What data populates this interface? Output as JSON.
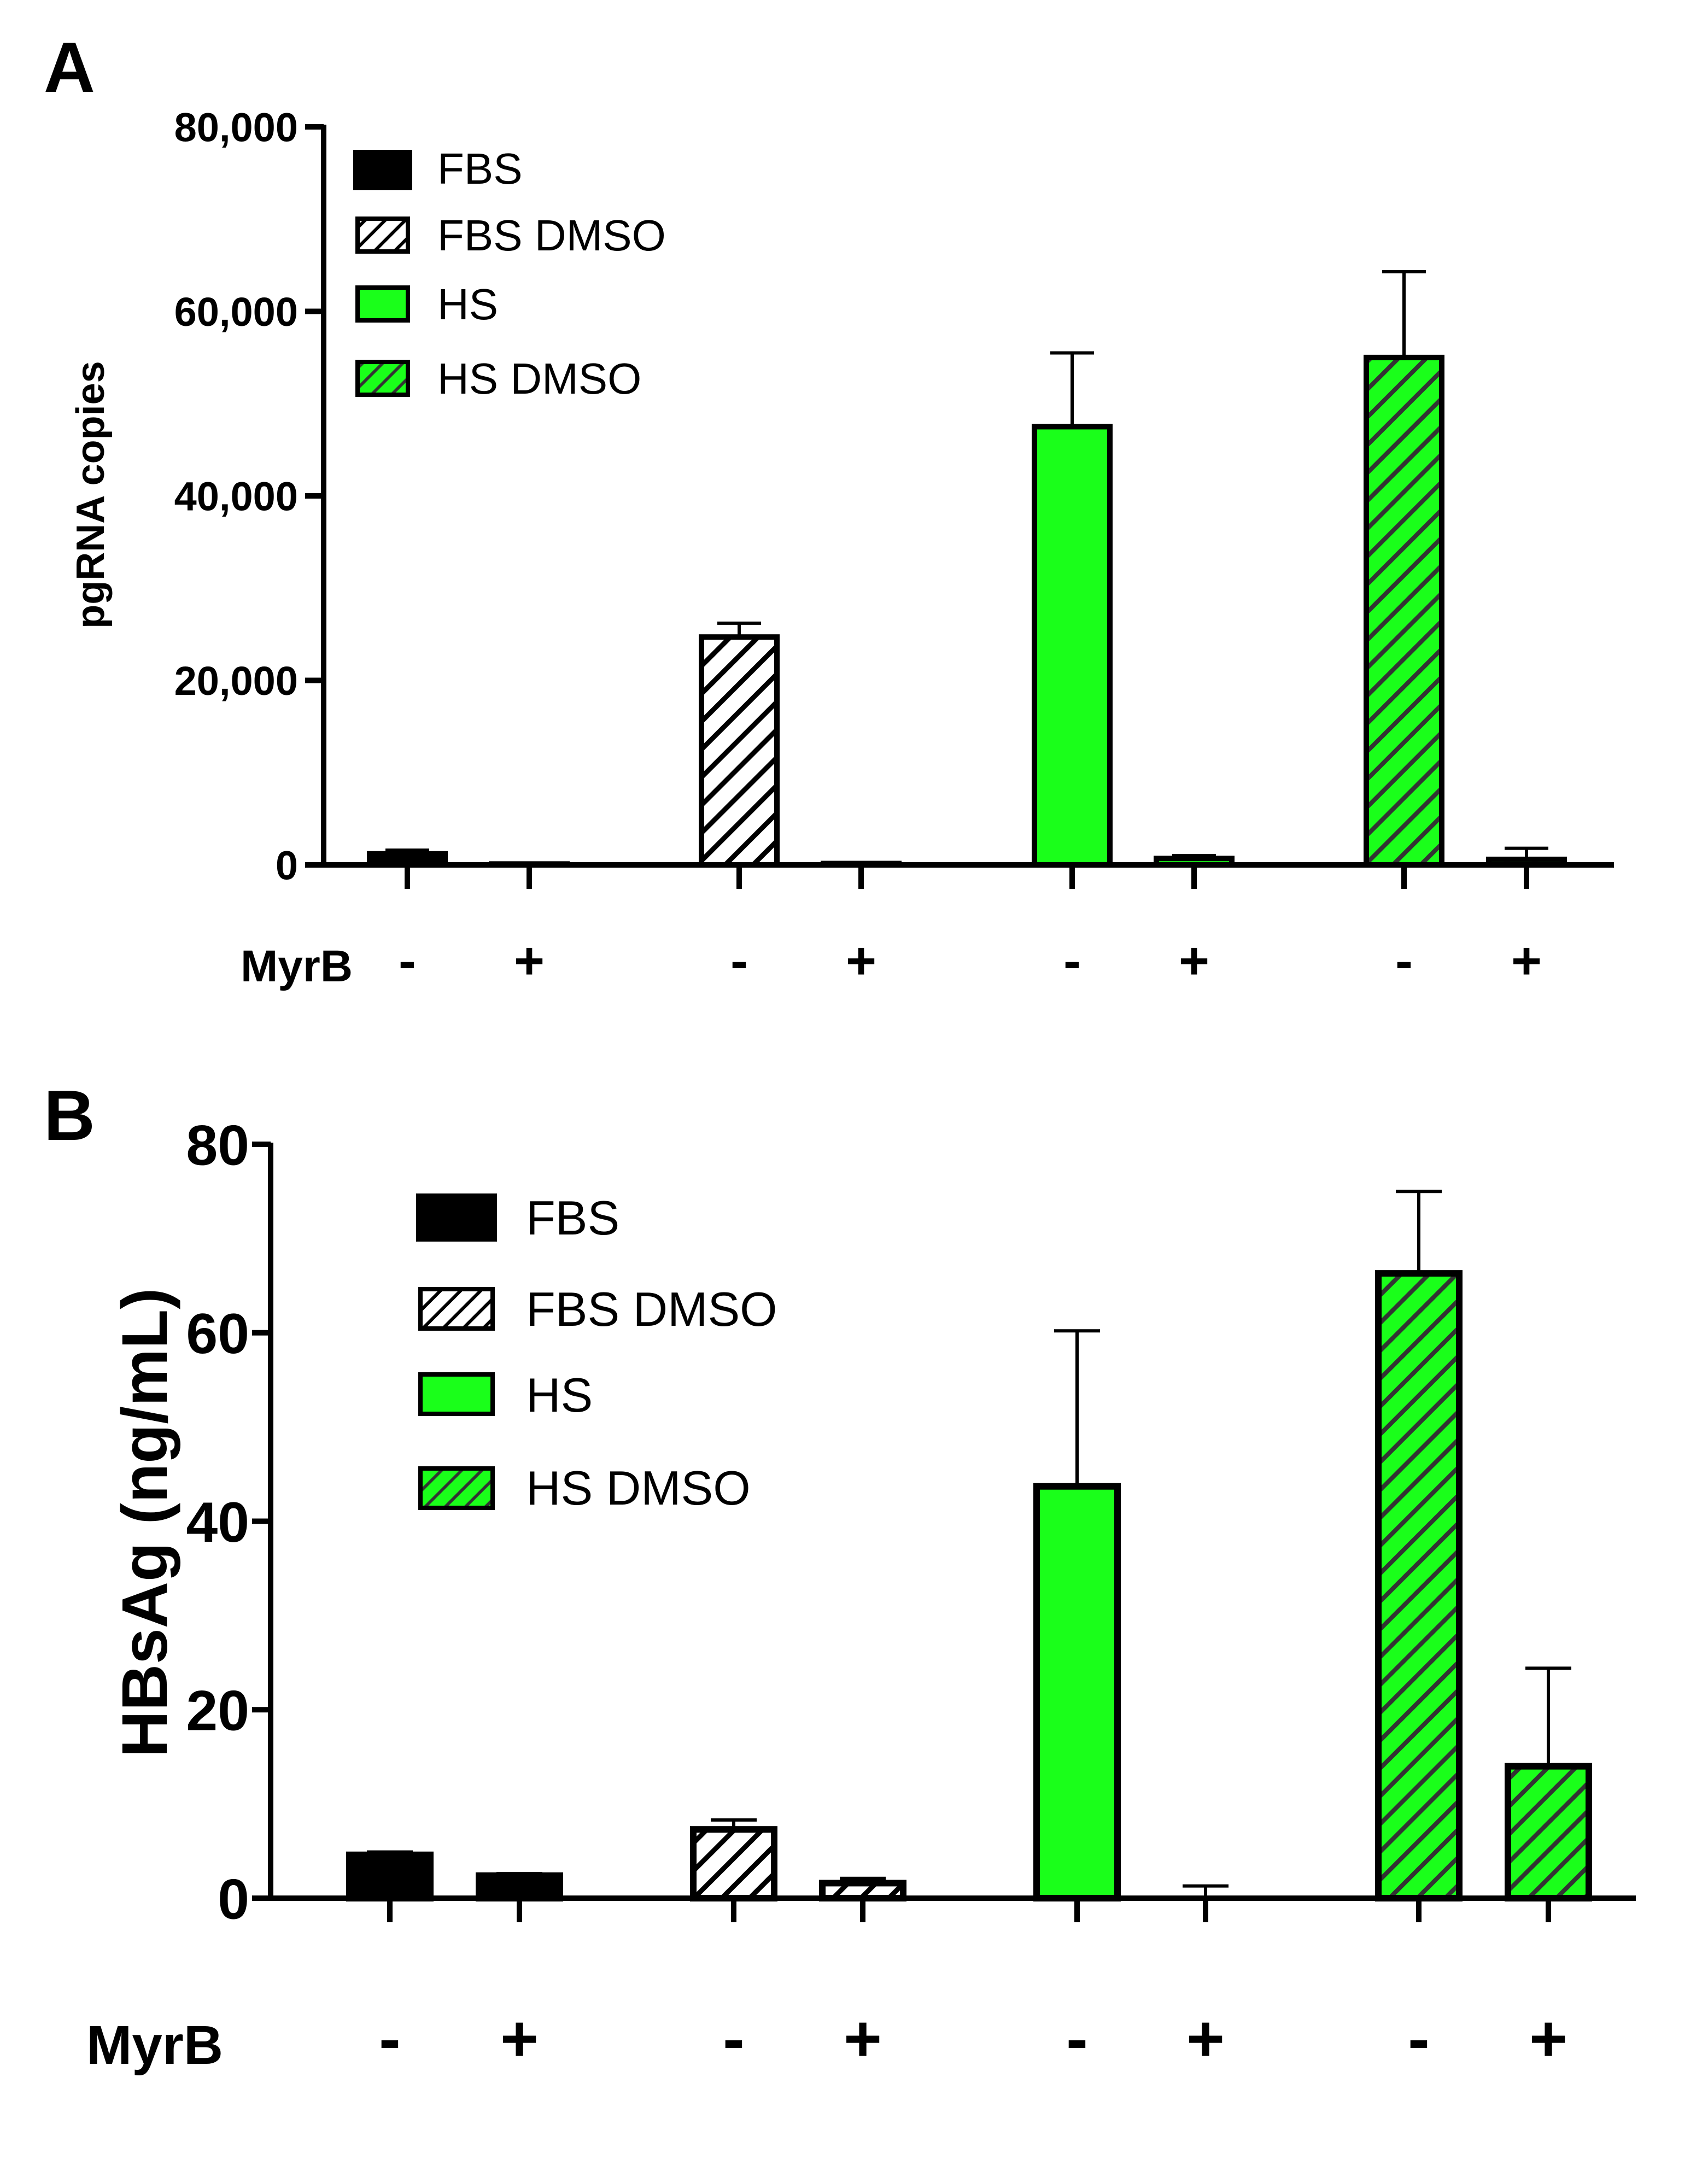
{
  "figure_labels": [
    "A",
    "B"
  ],
  "colors": {
    "black": "#000000",
    "green": "#1aff1a",
    "hatch_line": "#000000",
    "hatch_bg_white": "#ffffff"
  },
  "chart_data": [
    {
      "panel": "A",
      "type": "bar",
      "title": "",
      "xlabel": "",
      "ylabel": "pgRNA copies",
      "ylim": [
        0,
        80000
      ],
      "yticks": [
        0,
        20000,
        40000,
        60000,
        80000
      ],
      "ytick_labels": [
        "0",
        "20,000",
        "40,000",
        "60,000",
        "80,000"
      ],
      "treatment_label": "MyrB",
      "treatment_signs": [
        "-",
        "+",
        "-",
        "+",
        "-",
        "+",
        "-",
        "+"
      ],
      "legend": [
        "FBS",
        "FBS DMSO",
        "HS",
        "HS DMSO"
      ],
      "legend_position": "top-left",
      "series": [
        {
          "name": "FBS",
          "fill": "solid-black",
          "values": [
            1200,
            100
          ],
          "errors": [
            400,
            0
          ]
        },
        {
          "name": "FBS DMSO",
          "fill": "hatch-white",
          "values": [
            24700,
            150
          ],
          "errors": [
            1500,
            0
          ]
        },
        {
          "name": "HS",
          "fill": "solid-green",
          "values": [
            47500,
            700
          ],
          "errors": [
            8000,
            300
          ]
        },
        {
          "name": "HS DMSO",
          "fill": "hatch-green",
          "values": [
            55000,
            600
          ],
          "errors": [
            9300,
            1200
          ]
        }
      ]
    },
    {
      "panel": "B",
      "type": "bar",
      "title": "",
      "xlabel": "",
      "ylabel": "HBsAg (ng/mL)",
      "ylim": [
        0,
        80
      ],
      "yticks": [
        0,
        20,
        40,
        60,
        80
      ],
      "ytick_labels": [
        "0",
        "20",
        "40",
        "60",
        "80"
      ],
      "treatment_label": "MyrB",
      "treatment_signs": [
        "-",
        "+",
        "-",
        "+",
        "-",
        "+",
        "-",
        "+"
      ],
      "legend": [
        "FBS",
        "FBS DMSO",
        "HS",
        "HS DMSO"
      ],
      "legend_position": "top-left",
      "series": [
        {
          "name": "FBS",
          "fill": "solid-black",
          "values": [
            4.6,
            2.4
          ],
          "errors": [
            0.3,
            0.2
          ]
        },
        {
          "name": "FBS DMSO",
          "fill": "hatch-white",
          "values": [
            7.3,
            1.6
          ],
          "errors": [
            1.0,
            0.5
          ]
        },
        {
          "name": "HS",
          "fill": "solid-green",
          "values": [
            43.7,
            0
          ],
          "errors": [
            16.5,
            1.3
          ]
        },
        {
          "name": "HS DMSO",
          "fill": "hatch-green",
          "values": [
            66.3,
            14.0
          ],
          "errors": [
            8.7,
            10.4
          ]
        }
      ]
    }
  ]
}
